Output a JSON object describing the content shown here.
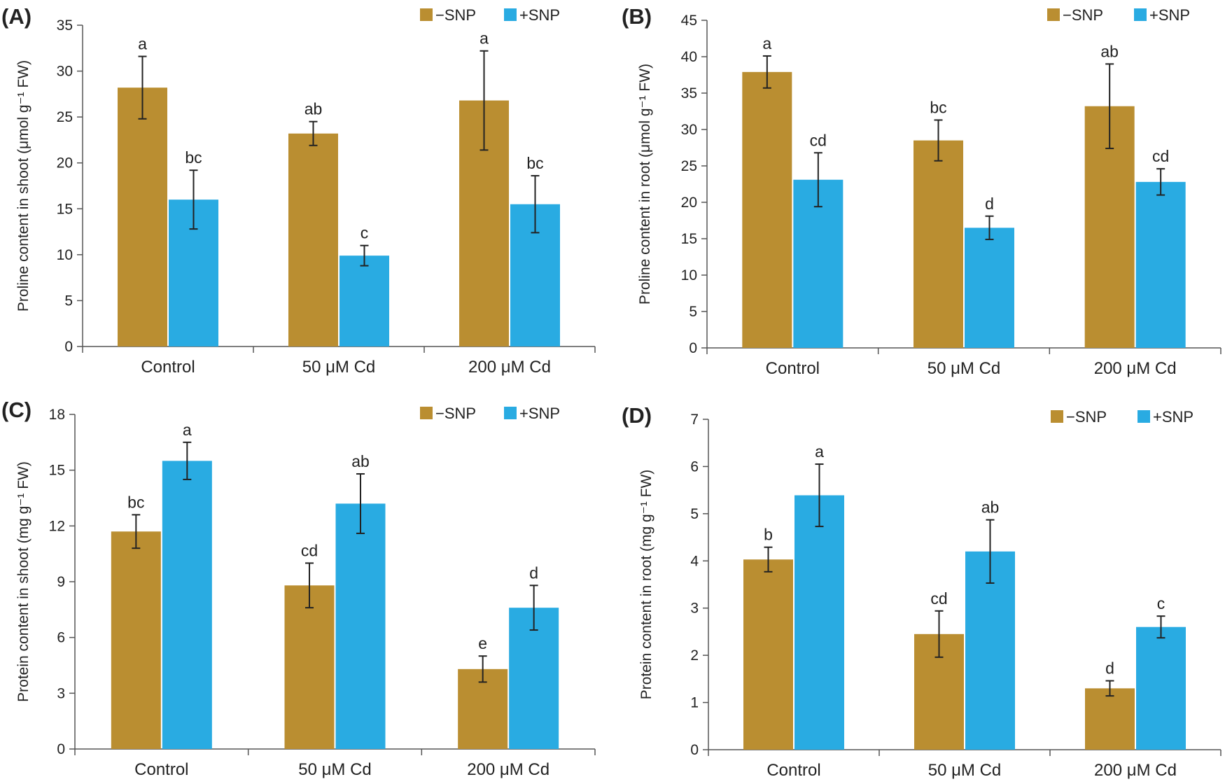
{
  "colors": {
    "minus_snp": "#BA8E31",
    "plus_snp": "#29ABE2",
    "axis": "#555555",
    "error_bar": "#222222"
  },
  "chart_data": [
    {
      "panel": "(A)",
      "type": "bar",
      "ylabel": "Proline content in shoot (μmol g⁻¹ FW)",
      "xlabel": "",
      "categories": [
        "Control",
        "50 μM Cd",
        "200 μM Cd"
      ],
      "ylim": [
        0,
        35
      ],
      "yticks": [
        0,
        5,
        10,
        15,
        20,
        25,
        30,
        35
      ],
      "grid": false,
      "legend_position": "top-right",
      "series": [
        {
          "name": "−SNP",
          "color": "#BA8E31",
          "values": [
            28.2,
            23.2,
            26.8
          ],
          "errors": [
            3.4,
            1.3,
            5.4
          ],
          "labels": [
            "a",
            "ab",
            "a"
          ]
        },
        {
          "name": "+SNP",
          "color": "#29ABE2",
          "values": [
            16.0,
            9.9,
            15.5
          ],
          "errors": [
            3.2,
            1.1,
            3.1
          ],
          "labels": [
            "bc",
            "c",
            "bc"
          ]
        }
      ]
    },
    {
      "panel": "(B)",
      "type": "bar",
      "ylabel": "Proline content in root (μmol g⁻¹ FW)",
      "xlabel": "",
      "categories": [
        "Control",
        "50 μM Cd",
        "200 μM Cd"
      ],
      "ylim": [
        0,
        45
      ],
      "yticks": [
        0,
        5,
        10,
        15,
        20,
        25,
        30,
        35,
        40,
        45
      ],
      "grid": false,
      "legend_position": "top-right",
      "series": [
        {
          "name": "−SNP",
          "color": "#BA8E31",
          "values": [
            37.9,
            28.5,
            33.2
          ],
          "errors": [
            2.2,
            2.8,
            5.8
          ],
          "labels": [
            "a",
            "bc",
            "ab"
          ]
        },
        {
          "name": "+SNP",
          "color": "#29ABE2",
          "values": [
            23.1,
            16.5,
            22.8
          ],
          "errors": [
            3.7,
            1.6,
            1.8
          ],
          "labels": [
            "cd",
            "d",
            "cd"
          ]
        }
      ]
    },
    {
      "panel": "(C)",
      "type": "bar",
      "ylabel": "Protein content in shoot (mg g⁻¹ FW)",
      "xlabel": "",
      "categories": [
        "Control",
        "50 μM Cd",
        "200 μM Cd"
      ],
      "ylim": [
        0,
        18
      ],
      "yticks": [
        0,
        3,
        6,
        9,
        12,
        15,
        18
      ],
      "grid": false,
      "legend_position": "top-right",
      "series": [
        {
          "name": "−SNP",
          "color": "#BA8E31",
          "values": [
            11.7,
            8.8,
            4.3
          ],
          "errors": [
            0.9,
            1.2,
            0.7
          ],
          "labels": [
            "bc",
            "cd",
            "e"
          ]
        },
        {
          "name": "+SNP",
          "color": "#29ABE2",
          "values": [
            15.5,
            13.2,
            7.6
          ],
          "errors": [
            1.0,
            1.6,
            1.2
          ],
          "labels": [
            "a",
            "ab",
            "d"
          ]
        }
      ]
    },
    {
      "panel": "(D)",
      "type": "bar",
      "ylabel": "Protein content in root (mg g⁻¹ FW)",
      "xlabel": "",
      "categories": [
        "Control",
        "50 μM Cd",
        "200 μM Cd"
      ],
      "ylim": [
        0,
        7
      ],
      "yticks": [
        0,
        1,
        2,
        3,
        4,
        5,
        6,
        7
      ],
      "grid": false,
      "legend_position": "top-right",
      "series": [
        {
          "name": "−SNP",
          "color": "#BA8E31",
          "values": [
            4.03,
            2.45,
            1.3
          ],
          "errors": [
            0.26,
            0.49,
            0.16
          ],
          "labels": [
            "b",
            "cd",
            "d"
          ]
        },
        {
          "name": "+SNP",
          "color": "#29ABE2",
          "values": [
            5.39,
            4.2,
            2.6
          ],
          "errors": [
            0.66,
            0.67,
            0.23
          ],
          "labels": [
            "a",
            "ab",
            "c"
          ]
        }
      ]
    }
  ]
}
